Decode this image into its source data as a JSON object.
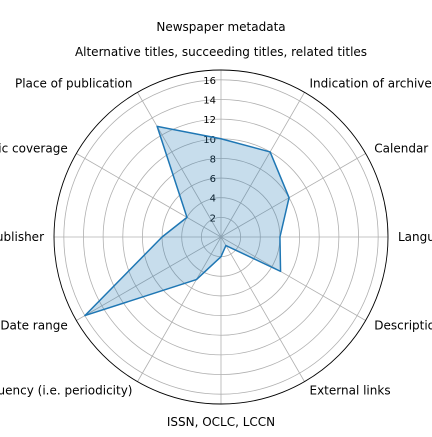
{
  "chart_data": {
    "type": "radar",
    "title": "Newspaper metadata",
    "categories": [
      "Alternative titles, succeeding titles, related titles",
      "Indication of archive holder",
      "Calendar view of issues",
      "Language",
      "Description of newspaper (history)",
      "External links",
      "ISSN, OCLC, LCCN",
      "Frequency (i.e. periodicity)",
      "Date range",
      "Publisher",
      "Geographic coverage",
      "Place of publication"
    ],
    "values": [
      10,
      10,
      8,
      6,
      7,
      1,
      2,
      5,
      16,
      6,
      4,
      13
    ],
    "rlim": [
      0,
      17
    ],
    "rticks": [
      2,
      4,
      6,
      8,
      10,
      12,
      14,
      16
    ],
    "grid": true,
    "colors": {
      "line": "#1f77b4",
      "fill": "#1f77b4",
      "grid": "#b0b0b0",
      "frame": "#000000"
    }
  }
}
